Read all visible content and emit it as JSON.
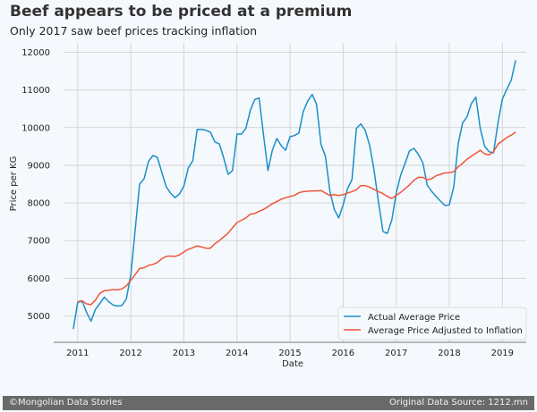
{
  "header": {
    "title": "Beef appears to be priced at a premium",
    "subtitle": "Only 2017 saw beef prices tracking inflation"
  },
  "footer": {
    "left": "©Mongolian Data Stories",
    "right": "Original Data Source: 1212.mn"
  },
  "colors": {
    "actual": "#1b8fc8",
    "inflation": "#f0553a",
    "grid": "#d4d4d8",
    "footer_bg": "#6a6a6a",
    "background": "#f5f9fd"
  },
  "chart_data": {
    "type": "line",
    "title": "Beef appears to be priced at a premium",
    "subtitle": "Only 2017 saw beef prices tracking inflation",
    "xlabel": "Date",
    "ylabel": "Price per KG",
    "xlim": [
      2010.75,
      2019.45
    ],
    "ylim": [
      4300,
      12250
    ],
    "xticks": [
      2011,
      2012,
      2013,
      2014,
      2015,
      2016,
      2017,
      2018,
      2019
    ],
    "xtick_labels": [
      "2011",
      "2012",
      "2013",
      "2014",
      "2015",
      "2016",
      "2017",
      "2018",
      "2019"
    ],
    "yticks": [
      5000,
      6000,
      7000,
      8000,
      9000,
      10000,
      11000,
      12000
    ],
    "ytick_labels": [
      "5000",
      "6000",
      "7000",
      "8000",
      "9000",
      "10000",
      "11000",
      "12000"
    ],
    "grid": true,
    "legend_position": "bottom-right",
    "x_start": 2010.917,
    "x_step_months": 1,
    "series": [
      {
        "name": "Actual Average Price",
        "color": "#1b8fc8",
        "values": [
          4650,
          5360,
          5390,
          5100,
          4860,
          5170,
          5330,
          5500,
          5380,
          5290,
          5260,
          5280,
          5450,
          6100,
          7300,
          8500,
          8640,
          9100,
          9260,
          9210,
          8810,
          8430,
          8260,
          8140,
          8240,
          8450,
          8930,
          9120,
          9950,
          9950,
          9930,
          9880,
          9620,
          9570,
          9190,
          8760,
          8860,
          9830,
          9830,
          9980,
          10450,
          10740,
          10790,
          9810,
          8860,
          9400,
          9710,
          9520,
          9400,
          9760,
          9790,
          9860,
          10430,
          10710,
          10880,
          10620,
          9550,
          9240,
          8310,
          7830,
          7600,
          7950,
          8380,
          8620,
          9980,
          10100,
          9930,
          9520,
          8860,
          8020,
          7240,
          7190,
          7550,
          8260,
          8740,
          9050,
          9380,
          9450,
          9290,
          9070,
          8480,
          8310,
          8170,
          8050,
          7930,
          7950,
          8430,
          9570,
          10120,
          10290,
          10640,
          10810,
          9980,
          9500,
          9360,
          9330,
          10120,
          10760,
          11020,
          11260,
          11790
        ]
      },
      {
        "name": "Average Price Adjusted to Inflation",
        "color": "#f0553a",
        "start_offset_months": 1,
        "values": [
          5380,
          5400,
          5320,
          5300,
          5420,
          5600,
          5670,
          5680,
          5700,
          5690,
          5720,
          5800,
          5950,
          6100,
          6260,
          6280,
          6340,
          6370,
          6420,
          6520,
          6580,
          6590,
          6580,
          6620,
          6700,
          6770,
          6810,
          6860,
          6830,
          6800,
          6800,
          6920,
          7000,
          7100,
          7200,
          7340,
          7480,
          7540,
          7600,
          7700,
          7720,
          7780,
          7830,
          7900,
          7980,
          8040,
          8100,
          8140,
          8170,
          8200,
          8270,
          8300,
          8310,
          8320,
          8320,
          8330,
          8260,
          8200,
          8220,
          8200,
          8220,
          8260,
          8300,
          8350,
          8460,
          8460,
          8420,
          8360,
          8300,
          8250,
          8170,
          8120,
          8200,
          8280,
          8380,
          8480,
          8600,
          8680,
          8680,
          8620,
          8640,
          8720,
          8760,
          8800,
          8800,
          8830,
          8960,
          9050,
          9160,
          9240,
          9320,
          9400,
          9300,
          9280,
          9360,
          9560,
          9650,
          9740,
          9800,
          9880
        ]
      }
    ]
  }
}
